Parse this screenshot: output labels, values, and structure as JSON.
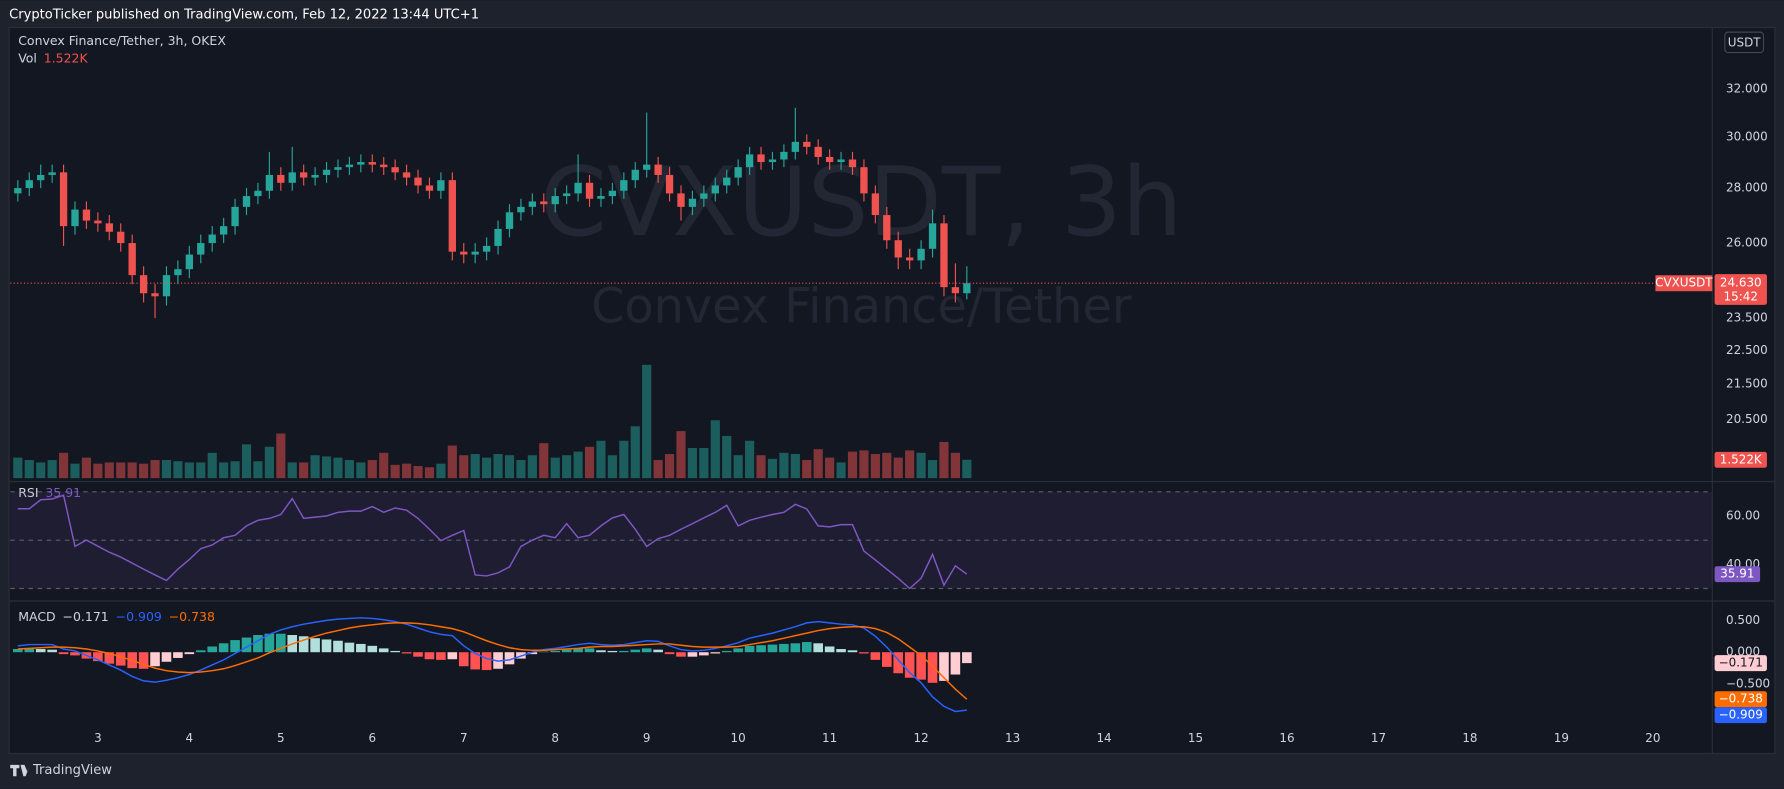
{
  "header": {
    "published": "CryptoTicker published on TradingView.com, Feb 12, 2022 13:44 UTC+1"
  },
  "footer": {
    "brand": "TradingView"
  },
  "chart_data": {
    "type": "candlestick",
    "title": "Convex Finance/Tether, 3h, OKEX",
    "watermark": {
      "symbol": "CVXUSDT, 3h",
      "name": "Convex Finance/Tether"
    },
    "currency": "USDT",
    "symbol_tag": "CVXUSDT",
    "last_price": {
      "value": 24.63,
      "label": "24.630"
    },
    "countdown": "15:42",
    "up_color": "#26a69a",
    "down_color": "#ef5350",
    "log_scale": true,
    "grid": false,
    "xlim": [
      2.042,
      20.65
    ],
    "xticks": [
      3,
      4,
      5,
      6,
      7,
      8,
      9,
      10,
      11,
      12,
      13,
      14,
      15,
      16,
      17,
      18,
      19,
      20
    ],
    "ylim": [
      18.94,
      34.55
    ],
    "yticks": [
      {
        "value": 32,
        "label": "32.000"
      },
      {
        "value": 30,
        "label": "30.000"
      },
      {
        "value": 28,
        "label": "28.000"
      },
      {
        "value": 26,
        "label": "26.000"
      },
      {
        "value": 23.5,
        "label": "23.500"
      },
      {
        "value": 22.5,
        "label": "22.500"
      },
      {
        "value": 21.5,
        "label": "21.500"
      },
      {
        "value": 20.5,
        "label": "20.500"
      }
    ],
    "x": [
      2.125,
      2.25,
      2.375,
      2.5,
      2.625,
      2.75,
      2.875,
      3,
      3.125,
      3.25,
      3.375,
      3.5,
      3.625,
      3.75,
      3.875,
      4,
      4.125,
      4.25,
      4.375,
      4.5,
      4.625,
      4.75,
      4.875,
      5,
      5.125,
      5.25,
      5.375,
      5.5,
      5.625,
      5.75,
      5.875,
      6,
      6.125,
      6.25,
      6.375,
      6.5,
      6.625,
      6.75,
      6.875,
      7,
      7.125,
      7.25,
      7.375,
      7.5,
      7.625,
      7.75,
      7.875,
      8,
      8.125,
      8.25,
      8.375,
      8.5,
      8.625,
      8.75,
      8.875,
      9,
      9.125,
      9.25,
      9.375,
      9.5,
      9.625,
      9.75,
      9.875,
      10,
      10.125,
      10.25,
      10.375,
      10.5,
      10.625,
      10.75,
      10.875,
      11,
      11.125,
      11.25,
      11.375,
      11.5,
      11.625,
      11.75,
      11.875,
      12,
      12.125,
      12.25,
      12.375,
      12.5
    ],
    "open": [
      27.8,
      28.0,
      28.3,
      28.5,
      28.6,
      26.6,
      27.2,
      26.8,
      26.7,
      26.4,
      26.0,
      24.9,
      24.3,
      24.2,
      24.9,
      25.1,
      25.6,
      26.0,
      26.3,
      26.6,
      27.3,
      27.7,
      27.9,
      28.5,
      28.2,
      28.6,
      28.4,
      28.5,
      28.7,
      28.8,
      28.9,
      29.0,
      28.9,
      28.8,
      28.6,
      28.4,
      28.1,
      27.9,
      28.3,
      25.7,
      25.6,
      25.7,
      25.9,
      26.5,
      27.1,
      27.3,
      27.5,
      27.4,
      27.7,
      27.8,
      28.2,
      27.6,
      27.7,
      27.9,
      28.3,
      28.7,
      28.9,
      28.5,
      27.8,
      27.3,
      27.6,
      27.8,
      28.1,
      28.4,
      28.8,
      29.3,
      29.0,
      29.1,
      29.4,
      29.8,
      29.6,
      29.2,
      29.0,
      29.1,
      28.8,
      27.8,
      27.0,
      26.1,
      25.5,
      25.4,
      25.8,
      26.7,
      24.5,
      24.3
    ],
    "high": [
      28.3,
      28.6,
      28.9,
      28.9,
      28.9,
      27.5,
      27.5,
      27.1,
      27.0,
      26.7,
      26.3,
      25.2,
      24.6,
      25.2,
      25.4,
      25.9,
      26.3,
      26.6,
      26.9,
      27.6,
      28.0,
      28.2,
      29.4,
      28.8,
      29.6,
      28.9,
      28.8,
      29.0,
      29.1,
      29.2,
      29.3,
      29.3,
      29.2,
      29.1,
      28.9,
      28.7,
      28.4,
      28.6,
      28.6,
      26.0,
      26.0,
      26.2,
      26.8,
      27.4,
      27.6,
      27.8,
      27.8,
      28.0,
      28.1,
      29.3,
      28.5,
      28.0,
      28.2,
      28.6,
      29.0,
      31.0,
      29.2,
      28.8,
      28.1,
      27.9,
      28.1,
      28.4,
      28.7,
      29.1,
      29.6,
      29.6,
      29.4,
      29.7,
      31.2,
      30.1,
      29.9,
      29.5,
      29.4,
      29.4,
      29.1,
      28.1,
      27.3,
      26.4,
      25.8,
      26.1,
      27.2,
      27.0,
      25.3,
      25.2
    ],
    "low": [
      27.5,
      27.7,
      28.0,
      28.2,
      25.9,
      26.3,
      26.5,
      26.4,
      26.1,
      25.7,
      24.6,
      24.0,
      23.5,
      23.9,
      24.6,
      24.8,
      25.3,
      25.7,
      26.0,
      26.3,
      27.0,
      27.4,
      27.6,
      27.9,
      27.9,
      28.1,
      28.1,
      28.2,
      28.4,
      28.5,
      28.6,
      28.6,
      28.5,
      28.3,
      28.1,
      27.8,
      27.6,
      27.6,
      25.4,
      25.3,
      25.3,
      25.4,
      25.6,
      26.2,
      26.8,
      27.0,
      27.1,
      27.1,
      27.4,
      27.5,
      27.3,
      27.3,
      27.4,
      27.6,
      28.0,
      28.4,
      28.2,
      27.5,
      26.8,
      27.0,
      27.3,
      27.5,
      27.8,
      28.1,
      28.5,
      28.7,
      28.7,
      28.8,
      29.1,
      29.3,
      28.9,
      28.7,
      28.7,
      28.5,
      27.5,
      26.7,
      25.8,
      25.1,
      25.1,
      25.1,
      25.5,
      24.2,
      24.0,
      24.1
    ],
    "close": [
      28.0,
      28.3,
      28.5,
      28.6,
      26.6,
      27.2,
      26.8,
      26.7,
      26.4,
      26.0,
      24.9,
      24.3,
      24.2,
      24.9,
      25.1,
      25.6,
      26.0,
      26.3,
      26.6,
      27.3,
      27.7,
      27.9,
      28.5,
      28.2,
      28.6,
      28.4,
      28.5,
      28.7,
      28.8,
      28.9,
      29.0,
      28.9,
      28.8,
      28.6,
      28.4,
      28.1,
      27.9,
      28.3,
      25.7,
      25.6,
      25.7,
      25.9,
      26.5,
      27.1,
      27.3,
      27.5,
      27.4,
      27.7,
      27.8,
      28.2,
      27.6,
      27.7,
      27.9,
      28.3,
      28.7,
      28.9,
      28.5,
      27.8,
      27.3,
      27.6,
      27.8,
      28.1,
      28.4,
      28.8,
      29.3,
      29.0,
      29.1,
      29.4,
      29.8,
      29.6,
      29.2,
      29.0,
      29.1,
      28.8,
      27.8,
      27.0,
      26.1,
      25.5,
      25.4,
      25.8,
      26.7,
      24.5,
      24.3,
      24.63
    ],
    "volume": {
      "name": "Vol",
      "last_label": "1.522K",
      "ylim": [
        0,
        37000
      ],
      "values": [
        1700,
        1500,
        1300,
        1500,
        2100,
        1200,
        1700,
        1200,
        1300,
        1300,
        1300,
        1200,
        1500,
        1500,
        1400,
        1300,
        1300,
        2100,
        1300,
        1400,
        2800,
        1400,
        2600,
        3700,
        1300,
        1300,
        1900,
        1800,
        1700,
        1500,
        1300,
        1500,
        2100,
        1100,
        1200,
        1000,
        900,
        1200,
        2700,
        1900,
        2000,
        1700,
        2000,
        1900,
        1500,
        1900,
        2900,
        1700,
        1900,
        2200,
        2600,
        3100,
        1900,
        3100,
        4300,
        9400,
        1500,
        2000,
        3900,
        2500,
        2500,
        4800,
        3500,
        1900,
        3100,
        1900,
        1600,
        2100,
        2000,
        1500,
        2400,
        1700,
        1300,
        2200,
        2300,
        2000,
        2100,
        1700,
        2300,
        2100,
        1500,
        3000,
        2100,
        1522
      ]
    },
    "rsi": {
      "name": "RSI",
      "last_label": "35.91",
      "color": "#7e57c2",
      "ylim": [
        25.3,
        73.3
      ],
      "yticks": [
        {
          "value": 60,
          "label": "60.00"
        },
        {
          "value": 40,
          "label": "40.00"
        }
      ],
      "bands": [
        70,
        50,
        30
      ],
      "values": [
        63,
        63,
        66.7,
        67,
        68.6,
        47.4,
        50,
        47.5,
        45,
        43,
        40.5,
        38,
        35.6,
        33.3,
        38,
        42,
        46.5,
        48,
        51,
        52,
        55.9,
        58.2,
        59,
        60.6,
        67.2,
        59,
        59.5,
        60,
        61.5,
        62,
        62,
        63.9,
        61.5,
        63.3,
        62.4,
        59,
        54.5,
        49.8,
        52,
        54,
        35.6,
        35.2,
        36.5,
        38.9,
        47.4,
        50,
        52,
        51,
        56.8,
        51,
        52,
        55.9,
        59.2,
        60.6,
        54.5,
        47.4,
        50.6,
        52,
        54.5,
        56.8,
        59.2,
        61.5,
        64.4,
        55.9,
        58.2,
        59.5,
        60.6,
        61.5,
        64.8,
        62.9,
        55.9,
        55.5,
        56.4,
        56.4,
        45.5,
        41.8,
        38,
        34.2,
        30,
        34.2,
        44.1,
        31.4,
        39.4,
        35.91
      ]
    },
    "macd": {
      "name": "MACD",
      "ylim": [
        -1.196,
        0.768
      ],
      "yticks": [
        {
          "value": 0.5,
          "label": "0.500"
        },
        {
          "value": 0,
          "label": "0.000"
        },
        {
          "value": -0.5,
          "label": "−0.500"
        }
      ],
      "histogram": {
        "last_label": "−0.171",
        "colors": [
          "#26a69a",
          "#b2dfdb",
          "#ffcdd2",
          "#ff5252"
        ],
        "values": [
          0.05,
          0.06,
          0.05,
          0.04,
          -0.03,
          -0.05,
          -0.1,
          -0.14,
          -0.18,
          -0.21,
          -0.25,
          -0.26,
          -0.22,
          -0.15,
          -0.09,
          -0.03,
          0.03,
          0.09,
          0.14,
          0.19,
          0.23,
          0.27,
          0.29,
          0.29,
          0.27,
          0.25,
          0.22,
          0.2,
          0.18,
          0.15,
          0.13,
          0.1,
          0.06,
          0.02,
          -0.02,
          -0.07,
          -0.11,
          -0.12,
          -0.11,
          -0.22,
          -0.27,
          -0.28,
          -0.26,
          -0.19,
          -0.1,
          -0.03,
          0.01,
          0.02,
          0.04,
          0.06,
          0.06,
          0.03,
          0.02,
          0.02,
          0.04,
          0.06,
          0.04,
          -0.03,
          -0.07,
          -0.07,
          -0.05,
          -0.02,
          0.02,
          0.06,
          0.1,
          0.11,
          0.12,
          0.13,
          0.14,
          0.16,
          0.14,
          0.09,
          0.05,
          0.03,
          -0.02,
          -0.12,
          -0.23,
          -0.33,
          -0.4,
          -0.43,
          -0.48,
          -0.45,
          -0.35,
          -0.171
        ]
      },
      "macd_line": {
        "last_label": "−0.909",
        "color": "#2962ff",
        "values": [
          0.1,
          0.12,
          0.12,
          0.12,
          0.05,
          0.02,
          -0.05,
          -0.12,
          -0.2,
          -0.28,
          -0.38,
          -0.45,
          -0.47,
          -0.44,
          -0.4,
          -0.35,
          -0.28,
          -0.2,
          -0.12,
          -0.02,
          0.08,
          0.18,
          0.28,
          0.35,
          0.4,
          0.44,
          0.47,
          0.5,
          0.52,
          0.53,
          0.54,
          0.53,
          0.51,
          0.48,
          0.44,
          0.38,
          0.32,
          0.28,
          0.26,
          0.1,
          -0.02,
          -0.1,
          -0.14,
          -0.12,
          -0.06,
          0.0,
          0.04,
          0.06,
          0.09,
          0.12,
          0.14,
          0.12,
          0.11,
          0.12,
          0.15,
          0.18,
          0.17,
          0.1,
          0.04,
          0.02,
          0.03,
          0.06,
          0.1,
          0.15,
          0.22,
          0.26,
          0.3,
          0.35,
          0.4,
          0.46,
          0.48,
          0.46,
          0.44,
          0.43,
          0.38,
          0.25,
          0.08,
          -0.12,
          -0.32,
          -0.48,
          -0.7,
          -0.85,
          -0.93,
          -0.909
        ]
      },
      "signal": {
        "last_label": "−0.738",
        "color": "#ff6d00",
        "values": [
          0.05,
          0.06,
          0.07,
          0.08,
          0.08,
          0.07,
          0.05,
          0.02,
          -0.02,
          -0.07,
          -0.13,
          -0.19,
          -0.25,
          -0.29,
          -0.31,
          -0.32,
          -0.31,
          -0.29,
          -0.26,
          -0.21,
          -0.15,
          -0.09,
          -0.01,
          0.06,
          0.13,
          0.19,
          0.25,
          0.3,
          0.34,
          0.38,
          0.41,
          0.43,
          0.45,
          0.46,
          0.46,
          0.45,
          0.43,
          0.4,
          0.37,
          0.32,
          0.25,
          0.18,
          0.12,
          0.07,
          0.04,
          0.03,
          0.03,
          0.04,
          0.05,
          0.06,
          0.08,
          0.09,
          0.09,
          0.1,
          0.11,
          0.12,
          0.13,
          0.13,
          0.11,
          0.09,
          0.08,
          0.08,
          0.08,
          0.09,
          0.12,
          0.15,
          0.18,
          0.22,
          0.26,
          0.3,
          0.34,
          0.37,
          0.39,
          0.4,
          0.4,
          0.37,
          0.31,
          0.21,
          0.08,
          -0.05,
          -0.22,
          -0.4,
          -0.58,
          -0.738
        ]
      }
    }
  }
}
